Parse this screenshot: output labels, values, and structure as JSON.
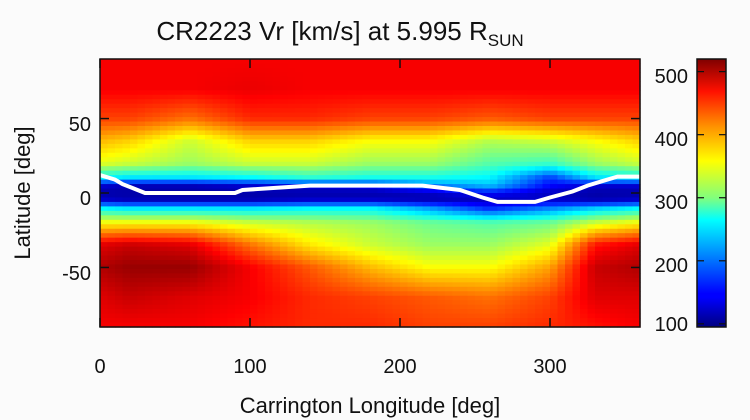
{
  "chart_data": {
    "type": "heatmap",
    "title": "CR2223 Vr [km/s] at 5.995 R",
    "title_subscript": "SUN",
    "xlabel": "Carrington Longitude [deg]",
    "ylabel": "Latitude [deg]",
    "xlim": [
      0,
      360
    ],
    "ylim": [
      -90,
      90
    ],
    "x_ticks": [
      "0",
      "100",
      "200",
      "300"
    ],
    "y_ticks": [
      "50",
      "0",
      "-50"
    ],
    "colorbar": {
      "range": [
        95,
        520
      ],
      "ticks": [
        "500",
        "400",
        "300",
        "200",
        "100"
      ],
      "colormap": "jet"
    },
    "value_field": {
      "description_of_estimate": "Vr (km/s) sampled along latitude at selected longitudes",
      "latitudes": [
        -90,
        -70,
        -50,
        -35,
        -20,
        -10,
        -5,
        0,
        5,
        10,
        20,
        35,
        50,
        70,
        90
      ],
      "profiles": [
        {
          "lon": 0,
          "vr": [
            470,
            480,
            500,
            480,
            360,
            250,
            130,
            110,
            130,
            250,
            350,
            390,
            440,
            470,
            470
          ]
        },
        {
          "lon": 20,
          "vr": [
            470,
            490,
            510,
            490,
            360,
            240,
            120,
            110,
            120,
            240,
            340,
            380,
            440,
            470,
            470
          ]
        },
        {
          "lon": 60,
          "vr": [
            470,
            480,
            510,
            480,
            360,
            240,
            120,
            110,
            120,
            240,
            320,
            340,
            420,
            470,
            470
          ]
        },
        {
          "lon": 100,
          "vr": [
            460,
            470,
            470,
            420,
            340,
            240,
            120,
            110,
            130,
            250,
            340,
            380,
            450,
            475,
            470
          ]
        },
        {
          "lon": 140,
          "vr": [
            450,
            450,
            430,
            370,
            330,
            250,
            130,
            110,
            140,
            270,
            340,
            380,
            450,
            470,
            470
          ]
        },
        {
          "lon": 180,
          "vr": [
            450,
            440,
            390,
            340,
            320,
            250,
            130,
            110,
            150,
            260,
            320,
            360,
            440,
            470,
            470
          ]
        },
        {
          "lon": 220,
          "vr": [
            440,
            430,
            360,
            320,
            300,
            210,
            120,
            120,
            200,
            260,
            320,
            360,
            440,
            470,
            470
          ]
        },
        {
          "lon": 260,
          "vr": [
            440,
            420,
            360,
            320,
            290,
            160,
            120,
            150,
            230,
            250,
            290,
            330,
            430,
            470,
            470
          ]
        },
        {
          "lon": 300,
          "vr": [
            450,
            440,
            400,
            350,
            300,
            200,
            130,
            120,
            150,
            170,
            280,
            340,
            440,
            470,
            470
          ]
        },
        {
          "lon": 330,
          "vr": [
            460,
            480,
            490,
            460,
            340,
            230,
            120,
            110,
            130,
            240,
            320,
            360,
            440,
            470,
            470
          ]
        },
        {
          "lon": 360,
          "vr": [
            470,
            480,
            500,
            480,
            360,
            250,
            130,
            110,
            130,
            250,
            340,
            380,
            440,
            470,
            470
          ]
        }
      ]
    },
    "neutral_line": {
      "color": "#ffffff",
      "points": [
        [
          0,
          12
        ],
        [
          10,
          9
        ],
        [
          15,
          6
        ],
        [
          20,
          4
        ],
        [
          30,
          0
        ],
        [
          90,
          0
        ],
        [
          95,
          2
        ],
        [
          140,
          5
        ],
        [
          215,
          5
        ],
        [
          240,
          2
        ],
        [
          255,
          -3
        ],
        [
          265,
          -6
        ],
        [
          290,
          -6
        ],
        [
          300,
          -3
        ],
        [
          315,
          1
        ],
        [
          325,
          5
        ],
        [
          335,
          8
        ],
        [
          345,
          11
        ],
        [
          360,
          11
        ]
      ]
    }
  }
}
